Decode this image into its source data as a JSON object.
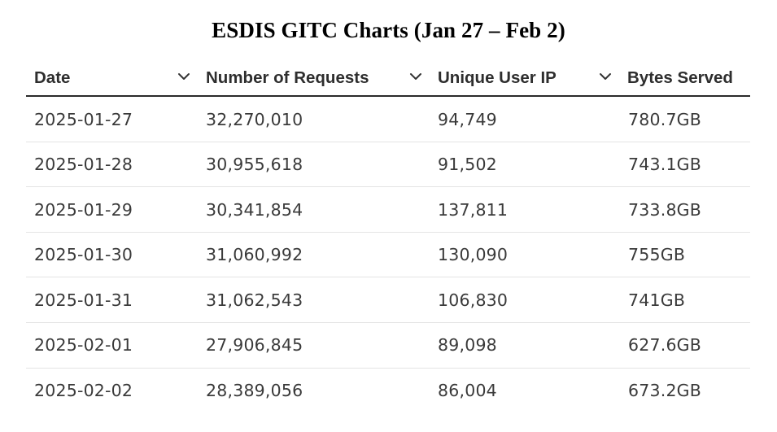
{
  "title": "ESDIS GITC Charts (Jan 27 – Feb 2)",
  "table": {
    "columns": [
      {
        "label": "Date",
        "sortable": true,
        "icon": "chevron-down-icon"
      },
      {
        "label": "Number of Requests",
        "sortable": true,
        "icon": "chevron-down-icon"
      },
      {
        "label": "Unique User IP",
        "sortable": true,
        "icon": "chevron-down-icon"
      },
      {
        "label": "Bytes Served",
        "sortable": false
      }
    ],
    "rows": [
      [
        "2025-01-27",
        "32,270,010",
        "94,749",
        "780.7GB"
      ],
      [
        "2025-01-28",
        "30,955,618",
        "91,502",
        "743.1GB"
      ],
      [
        "2025-01-29",
        "30,341,854",
        "137,811",
        "733.8GB"
      ],
      [
        "2025-01-30",
        "31,060,992",
        "130,090",
        "755GB"
      ],
      [
        "2025-01-31",
        "31,062,543",
        "106,830",
        "741GB"
      ],
      [
        "2025-02-01",
        "27,906,845",
        "89,098",
        "627.6GB"
      ],
      [
        "2025-02-02",
        "28,389,056",
        "86,004",
        "673.2GB"
      ]
    ]
  },
  "colors": {
    "header_text": "#2e2e2e",
    "cell_text": "#3a3a3a",
    "header_rule": "#2b2b2b",
    "row_rule": "#e4e4e4"
  }
}
